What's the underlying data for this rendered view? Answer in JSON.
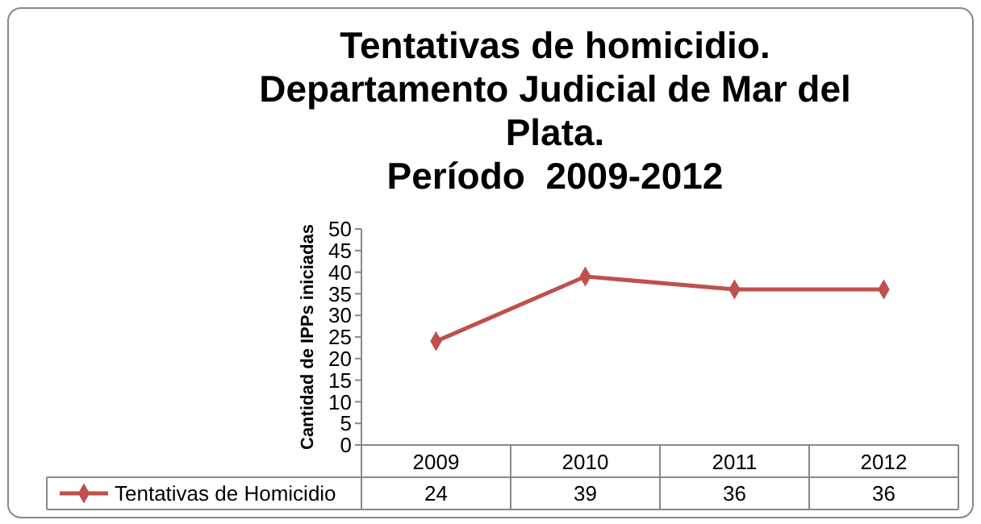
{
  "chart_data": {
    "type": "line",
    "title": "Tentativas de homicidio.\nDepartamento Judicial de Mar del\nPlata.\nPeríodo  2009-2012",
    "ylabel": "Cantidad de IPPs iniciadas",
    "categories": [
      "2009",
      "2010",
      "2011",
      "2012"
    ],
    "series": [
      {
        "name": "Tentativas de Homicidio",
        "color": "#c0504d",
        "values": [
          24,
          39,
          36,
          36
        ]
      }
    ],
    "ylim": [
      0,
      50
    ],
    "yticks": [
      0,
      5,
      10,
      15,
      20,
      25,
      30,
      35,
      40,
      45,
      50
    ],
    "grid": false,
    "legend": "bottom",
    "marker": "diamond",
    "line_style": "solid",
    "data_labels": true
  }
}
